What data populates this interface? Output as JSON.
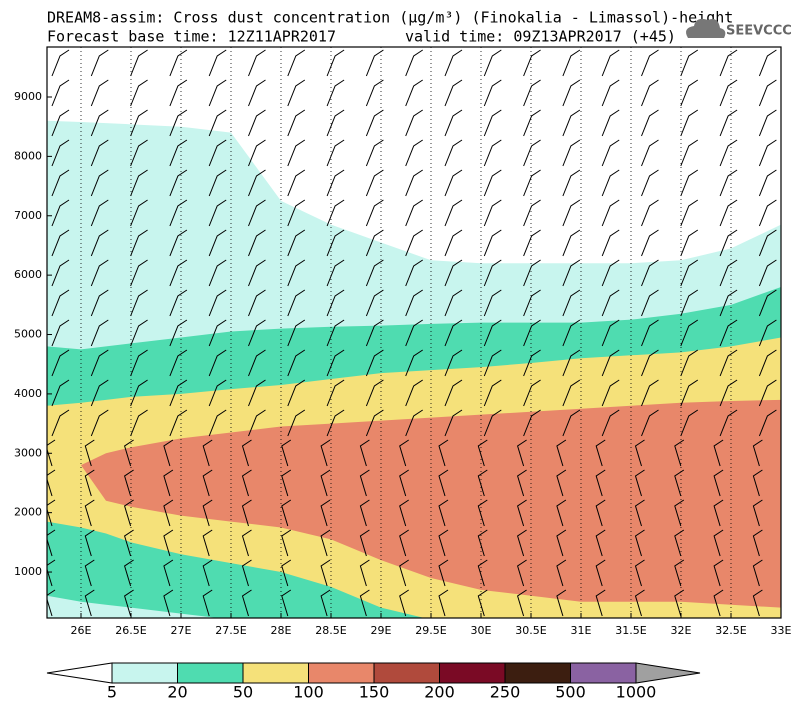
{
  "chart_data": {
    "type": "contour",
    "title": "DREAM8-assim: Cross dust concentration (µg/m³) (Finokalia - Limassol)-height",
    "subtitle": "Forecast base time: 12Z11APR2017",
    "valid_time": "valid time: 09Z13APR2017 (+45)",
    "logo": "SEEVCCC",
    "x": [
      25.66,
      26,
      26.25,
      26.5,
      27,
      27.5,
      28,
      28.5,
      29,
      29.5,
      30,
      30.5,
      31,
      31.5,
      32,
      32.5,
      33
    ],
    "xlim": [
      25.66,
      33
    ],
    "ylim": [
      226,
      9842
    ],
    "xticks": [
      {
        "value": 26,
        "label": "26E"
      },
      {
        "value": 26.5,
        "label": "26.5E"
      },
      {
        "value": 27,
        "label": "27E"
      },
      {
        "value": 27.5,
        "label": "27.5E"
      },
      {
        "value": 28,
        "label": "28E"
      },
      {
        "value": 28.5,
        "label": "28.5E"
      },
      {
        "value": 29,
        "label": "29E"
      },
      {
        "value": 29.5,
        "label": "29.5E"
      },
      {
        "value": 30,
        "label": "30E"
      },
      {
        "value": 30.5,
        "label": "30.5E"
      },
      {
        "value": 31,
        "label": "31E"
      },
      {
        "value": 31.5,
        "label": "31.5E"
      },
      {
        "value": 32,
        "label": "32E"
      },
      {
        "value": 32.5,
        "label": "32.5E"
      },
      {
        "value": 33,
        "label": "33E"
      }
    ],
    "yticks": [
      1000,
      2000,
      3000,
      4000,
      5000,
      6000,
      7000,
      8000,
      9000
    ],
    "grid": true,
    "regions": [
      {
        "color": "#c8f5ee",
        "top": [
          8600,
          8580,
          8560,
          8540,
          8500,
          8400,
          7250,
          6850,
          6550,
          6250,
          6200,
          6200,
          6200,
          6200,
          6250,
          6450,
          6850
        ],
        "bottom": [
          150,
          150,
          150,
          150,
          150,
          150,
          150,
          150,
          150,
          150,
          150,
          150,
          150,
          150,
          150,
          150,
          150
        ]
      },
      {
        "color": "#4fdcb0",
        "top": [
          4800,
          4750,
          4800,
          4850,
          4950,
          5050,
          5100,
          5130,
          5150,
          5180,
          5200,
          5200,
          5200,
          5250,
          5350,
          5500,
          5800
        ],
        "bottom": [
          600,
          500,
          450,
          400,
          300,
          200,
          150,
          150,
          150,
          150,
          150,
          150,
          150,
          150,
          150,
          150,
          150
        ]
      },
      {
        "color": "#f5e17a",
        "top": [
          3800,
          3850,
          3900,
          3950,
          4000,
          4080,
          4150,
          4250,
          4350,
          4400,
          4450,
          4520,
          4600,
          4650,
          4700,
          4800,
          4950
        ],
        "bottom": [
          1850,
          1750,
          1650,
          1500,
          1300,
          1150,
          1000,
          750,
          400,
          200,
          150,
          150,
          150,
          150,
          150,
          150,
          150
        ]
      },
      {
        "color": "#e8876a",
        "top": [
          null,
          2800,
          3000,
          3100,
          3250,
          3350,
          3450,
          3500,
          3550,
          3600,
          3650,
          3700,
          3750,
          3800,
          3850,
          3880,
          3900
        ],
        "bottom": [
          null,
          2800,
          2200,
          2100,
          1950,
          1850,
          1750,
          1550,
          1200,
          900,
          700,
          600,
          500,
          500,
          500,
          450,
          400
        ]
      }
    ],
    "colorbar": {
      "levels": [
        5,
        20,
        50,
        100,
        150,
        200,
        250,
        500,
        1000
      ],
      "colors": [
        "#ffffff",
        "#c8f5ee",
        "#4fdcb0",
        "#f5e17a",
        "#e8876a",
        "#b04a3c",
        "#7a0a25",
        "#3c1e10",
        "#8a62a2",
        "#a0a0a0"
      ]
    }
  }
}
